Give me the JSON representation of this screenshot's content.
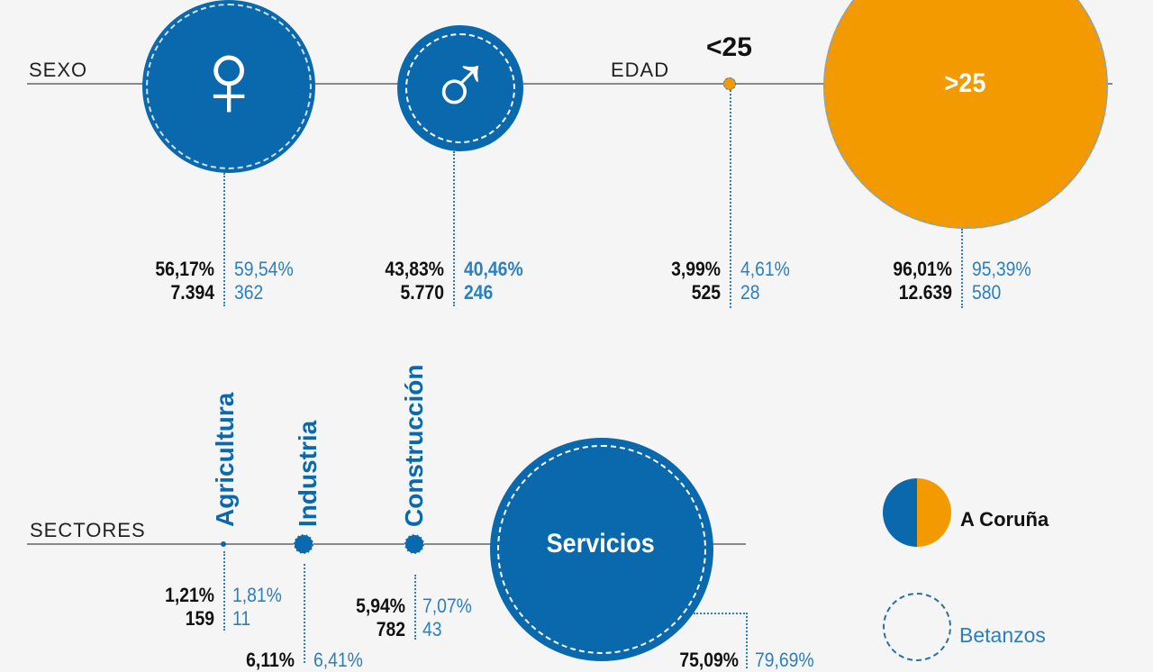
{
  "colors": {
    "a_coruna_blue": "#0a69ad",
    "a_coruna_orange": "#f39a00",
    "betanzos": "#2a7fc0"
  },
  "sexo": {
    "label": "SEXO",
    "mujer": {
      "icon": "female-symbol-icon",
      "glyph": "♀",
      "pct_coruna": "56,17%",
      "n_coruna": "7.394",
      "pct_betanzos": "59,54%",
      "n_betanzos": "362"
    },
    "hombre": {
      "icon": "male-symbol-icon",
      "glyph": "♂",
      "pct_coruna": "43,83%",
      "n_coruna": "5.770",
      "pct_betanzos": "40,46%",
      "n_betanzos": "246"
    }
  },
  "edad": {
    "label": "EDAD",
    "menor25": {
      "label": "<25",
      "pct_coruna": "3,99%",
      "n_coruna": "525",
      "pct_betanzos": "4,61%",
      "n_betanzos": "28"
    },
    "mayor25": {
      "label": ">25",
      "pct_coruna": "96,01%",
      "n_coruna": "12.639",
      "pct_betanzos": "95,39%",
      "n_betanzos": "580"
    }
  },
  "sectores": {
    "label": "SECTORES",
    "agricultura": {
      "label": "Agricultura",
      "pct_coruna": "1,21%",
      "n_coruna": "159",
      "pct_betanzos": "1,81%",
      "n_betanzos": "11"
    },
    "industria": {
      "label": "Industria",
      "pct_coruna": "6,11%",
      "pct_betanzos": "6,41%"
    },
    "construccion": {
      "label": "Construcción",
      "pct_coruna": "5,94%",
      "n_coruna": "782",
      "pct_betanzos": "7,07%",
      "n_betanzos": "43"
    },
    "servicios": {
      "label": "Servicios",
      "pct_coruna": "75,09%",
      "pct_betanzos": "79,69%"
    }
  },
  "legend": {
    "a_coruna": "A Coruña",
    "betanzos": "Betanzos"
  }
}
